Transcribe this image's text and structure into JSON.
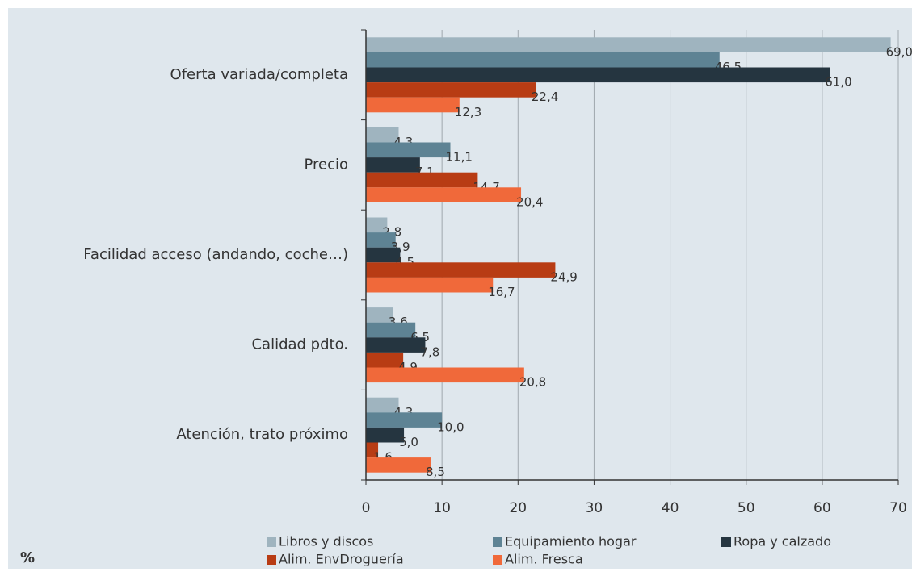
{
  "chart_data": {
    "type": "bar",
    "orientation": "horizontal",
    "categories": [
      "Oferta variada/completa",
      "Precio",
      "Facilidad acceso (andando, coche…)",
      "Calidad pdto.",
      "Atención, trato próximo"
    ],
    "series": [
      {
        "name": "Libros y discos",
        "color": "#9fb4bf",
        "values": [
          69.0,
          4.3,
          2.8,
          3.6,
          4.3
        ],
        "value_labels": [
          "69,0",
          "4,3",
          "2,8",
          "3,6",
          "4,3"
        ]
      },
      {
        "name": "Equipamiento hogar",
        "color": "#5e8394",
        "values": [
          46.5,
          11.1,
          3.9,
          6.5,
          10.0
        ],
        "value_labels": [
          "46,5",
          "11,1",
          "3,9",
          "6,5",
          "10,0"
        ]
      },
      {
        "name": "Ropa y calzado",
        "color": "#253540",
        "values": [
          61.0,
          7.1,
          4.5,
          7.8,
          5.0
        ],
        "value_labels": [
          "61,0",
          "7,1",
          "4,5",
          "7,8",
          "5,0"
        ]
      },
      {
        "name": "Alim. EnvDroguería",
        "color": "#b83c14",
        "values": [
          22.4,
          14.7,
          24.9,
          4.9,
          1.6
        ],
        "value_labels": [
          "22,4",
          "14,7",
          "24,9",
          "4,9",
          "1,6"
        ]
      },
      {
        "name": "Alim. Fresca",
        "color": "#f0693a",
        "values": [
          12.3,
          20.4,
          16.7,
          20.8,
          8.5
        ],
        "value_labels": [
          "12,3",
          "20,4",
          "16,7",
          "20,8",
          "8,5"
        ]
      }
    ],
    "xlim": [
      0,
      70
    ],
    "xticks": [
      0,
      10,
      20,
      30,
      40,
      50,
      60,
      70
    ],
    "grid": true,
    "unit_label": "%"
  }
}
